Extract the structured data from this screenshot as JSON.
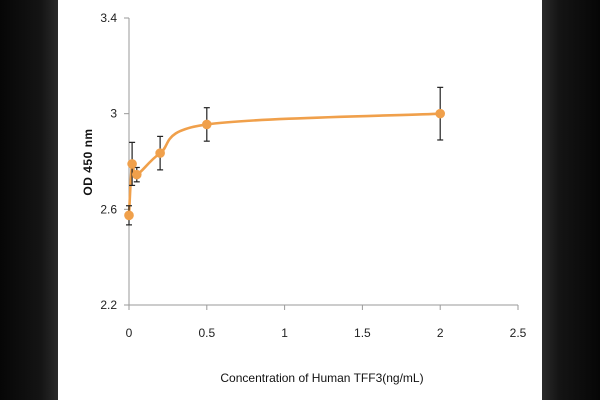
{
  "chart_data": {
    "type": "line",
    "title": "",
    "xlabel": "Concentration of Human TFF3(ng/mL)",
    "ylabel": "OD 450 nm",
    "xlim": [
      0,
      2.5
    ],
    "ylim": [
      2.2,
      3.4
    ],
    "xticks": [
      0,
      0.5,
      1,
      1.5,
      2,
      2.5
    ],
    "xtick_labels": [
      "0",
      "0.5",
      "1",
      "1.5",
      "2",
      "2.5"
    ],
    "yticks": [
      2.2,
      2.6,
      3,
      3.4
    ],
    "ytick_labels": [
      "2.2",
      "2.6",
      "3",
      "3.4"
    ],
    "grid": false,
    "legend": "none",
    "series": [
      {
        "color": "#f0a04b",
        "points": [
          {
            "x": 0,
            "y": 2.575,
            "err": 0.04
          },
          {
            "x": 0.02,
            "y": 2.79,
            "err": 0.09
          },
          {
            "x": 0.05,
            "y": 2.745,
            "err": 0.03
          },
          {
            "x": 0.2,
            "y": 2.835,
            "err": 0.07
          },
          {
            "x": 0.5,
            "y": 2.955,
            "err": 0.07
          },
          {
            "x": 2,
            "y": 3.0,
            "err": 0.11
          }
        ]
      }
    ]
  }
}
